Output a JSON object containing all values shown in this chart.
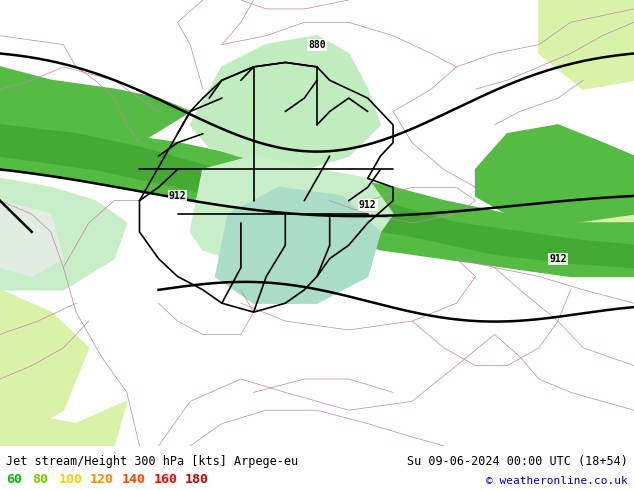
{
  "title_left": "Jet stream/Height 300 hPa [kts] Arpege-eu",
  "title_right": "Su 09-06-2024 00:00 UTC (18+54)",
  "copyright": "© weatheronline.co.uk",
  "legend_values": [
    "60",
    "80",
    "100",
    "120",
    "140",
    "160",
    "180"
  ],
  "legend_colors": [
    "#00bb00",
    "#77cc00",
    "#ffcc00",
    "#ff8800",
    "#ff4400",
    "#ff0000",
    "#cc0000"
  ],
  "fig_width": 6.34,
  "fig_height": 4.9,
  "dpi": 100,
  "bottom_bar_color": "#ccff99",
  "title_color": "#000000",
  "title_fontsize": 8.5,
  "copyright_color": "#0000cc",
  "copyright_fontsize": 8,
  "map_bg": "#b8edb8",
  "color_light_green": "#b8edb8",
  "color_med_green": "#66cc55",
  "color_pale_mint": "#d0f0d0",
  "color_yellow_green": "#d8f0a0",
  "color_light_cyan": "#aaddcc"
}
